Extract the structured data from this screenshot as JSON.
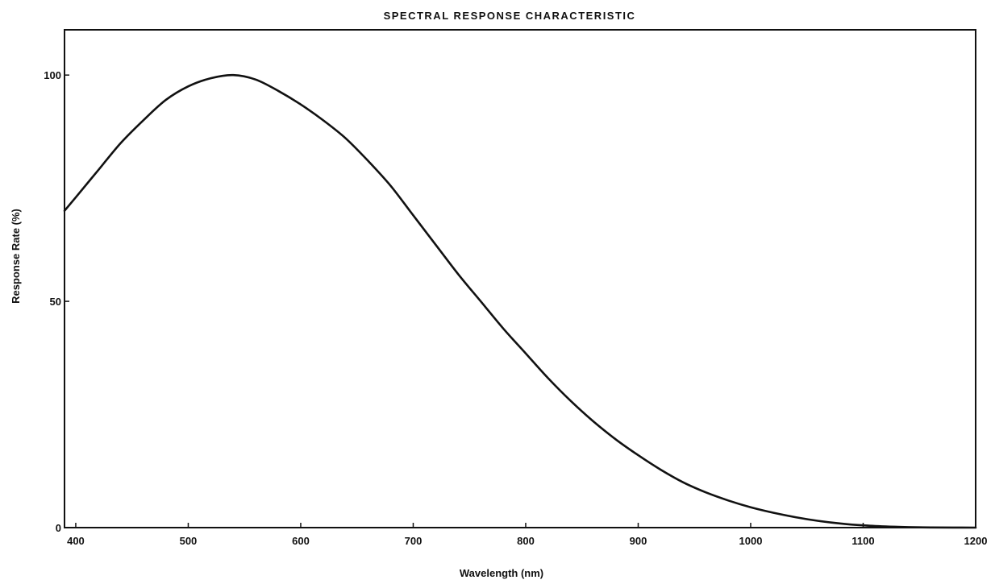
{
  "chart_data": {
    "type": "line",
    "title": "SPECTRAL RESPONSE CHARACTERISTIC",
    "xlabel": "Wavelength (nm)",
    "ylabel": "Response Rate (%)",
    "xlim": [
      390,
      1200
    ],
    "ylim": [
      0,
      110
    ],
    "x_ticks": [
      400,
      500,
      600,
      700,
      800,
      900,
      1000,
      1100,
      1200
    ],
    "y_ticks": [
      0,
      50,
      100
    ],
    "grid": false,
    "series": [
      {
        "color": "#111111",
        "x": [
          390,
          400,
          420,
          440,
          460,
          480,
          500,
          520,
          540,
          560,
          580,
          600,
          620,
          640,
          660,
          680,
          700,
          720,
          740,
          760,
          780,
          800,
          820,
          840,
          860,
          880,
          900,
          920,
          940,
          960,
          980,
          1000,
          1020,
          1040,
          1060,
          1080,
          1100,
          1120,
          1140,
          1160,
          1180,
          1200
        ],
        "y": [
          70,
          73,
          79,
          85,
          90,
          94.5,
          97.5,
          99.3,
          100,
          99,
          96.5,
          93.5,
          90,
          86,
          81,
          75.5,
          69,
          62.5,
          56,
          50,
          44,
          38.5,
          33,
          28,
          23.5,
          19.5,
          16,
          12.8,
          10,
          7.8,
          6,
          4.5,
          3.3,
          2.3,
          1.5,
          0.9,
          0.5,
          0.25,
          0.1,
          0.03,
          0.01,
          0
        ]
      }
    ]
  }
}
